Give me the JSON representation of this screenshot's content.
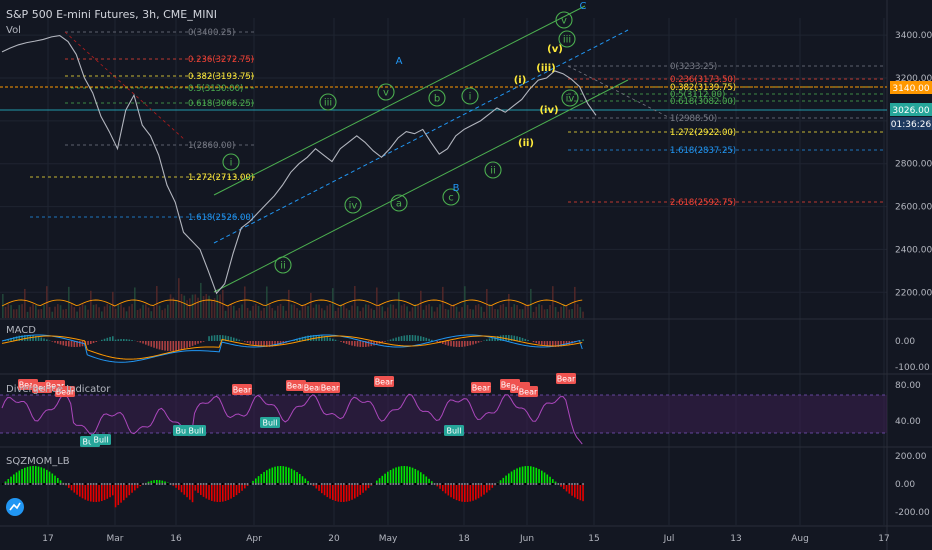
{
  "header": {
    "title": "S&P 500 E-mini Futures, 3h, CME_MINI",
    "vol_label": "Vol"
  },
  "panes": {
    "macd": "MACD",
    "divergence": "Divergence Indicator",
    "squeeze": "SQZMOM_LB"
  },
  "colors": {
    "background": "#131722",
    "grid": "#1f2431",
    "price_line": "#b2b5be",
    "channel_green": "#4caf50",
    "channel_blue": "#2196f3",
    "wave_green": "#4caf50",
    "wave_yellow": "#ffeb3b",
    "wave_blue": "#2196f3",
    "rsi_purple": "#ab47bc",
    "bear_red": "#ef5350",
    "bull_green": "#26a69a",
    "mom_green": "#00e600",
    "mom_red": "#e60000",
    "vol_orange": "#ff9800"
  },
  "chart_data": [
    {
      "type": "line",
      "pane": "price",
      "title": "S&P 500 E-mini Futures, 3h, CME_MINI",
      "x_ticks": [
        "17",
        "Mar",
        "16",
        "Apr",
        "20",
        "May",
        "18",
        "Jun",
        "15",
        "Jul",
        "13",
        "Aug",
        "17"
      ],
      "y_ticks": [
        2200,
        2400,
        2600,
        2800,
        3000,
        3200,
        3400
      ],
      "ylim": [
        2080,
        3480
      ],
      "series": [
        {
          "x": [
            0,
            3,
            6,
            9,
            12,
            15,
            18,
            21,
            24,
            27,
            30,
            33,
            36,
            39,
            42,
            45,
            48,
            51,
            54,
            57,
            60,
            63,
            66,
            69,
            72,
            75,
            78,
            81,
            84,
            87,
            90,
            93,
            96,
            99,
            102,
            105,
            108,
            111,
            114,
            117,
            120,
            123,
            126,
            129,
            132,
            135,
            138,
            141,
            144,
            147,
            150,
            153,
            156,
            159,
            162,
            165,
            168,
            171,
            174,
            177,
            180,
            183,
            186,
            189,
            192,
            195,
            198,
            201,
            204,
            207,
            210,
            213,
            216
          ],
          "y": [
            3322,
            3340,
            3355,
            3365,
            3372,
            3380,
            3392,
            3398,
            3370,
            3310,
            3200,
            3130,
            3020,
            2950,
            2870,
            3050,
            3120,
            2980,
            2930,
            2840,
            2700,
            2620,
            2480,
            2440,
            2400,
            2300,
            2195,
            2240,
            2380,
            2500,
            2530,
            2570,
            2610,
            2650,
            2700,
            2760,
            2800,
            2830,
            2870,
            2840,
            2810,
            2870,
            2900,
            2930,
            2900,
            2860,
            2830,
            2870,
            2920,
            2950,
            2940,
            2960,
            2900,
            2845,
            2870,
            2930,
            2960,
            2980,
            3000,
            3030,
            3060,
            3040,
            3070,
            3100,
            3150,
            3190,
            3200,
            3233,
            3220,
            3195,
            3160,
            3080,
            3026
          ]
        }
      ],
      "last_price": 3026.0,
      "last_price_tag": "3026.00",
      "countdown_tag": "01:36:26",
      "price_tag_3140": "3140.00",
      "fib_left": [
        {
          "label": "0(3400.25)",
          "color": "#787b86"
        },
        {
          "label": "0.236(3272.75)",
          "color": "#f44336"
        },
        {
          "label": "0.382(3193.75)",
          "color": "#ffeb3b"
        },
        {
          "label": "0.5(3130.00)",
          "color": "#4caf50"
        },
        {
          "label": "0.618(3066.25)",
          "color": "#4caf50"
        },
        {
          "label": "1(2860.00)",
          "color": "#787b86"
        },
        {
          "label": "1.272(2713.00)",
          "color": "#ffeb3b"
        },
        {
          "label": "1.618(2526.00)",
          "color": "#2196f3"
        }
      ],
      "fib_right": [
        {
          "label": "0(3233.25)",
          "color": "#787b86"
        },
        {
          "label": "0.236(3173.50)",
          "color": "#f44336"
        },
        {
          "label": "0.382(3139.75)",
          "color": "#ffeb3b"
        },
        {
          "label": "0.5(3112.00)",
          "color": "#4caf50"
        },
        {
          "label": "0.618(3082.00)",
          "color": "#4caf50"
        },
        {
          "label": "1(2988.50)",
          "color": "#787b86"
        },
        {
          "label": "1.272(2922.00)",
          "color": "#ffeb3b"
        },
        {
          "label": "1.618(2837.25)",
          "color": "#2196f3"
        },
        {
          "label": "2.618(2592.75)",
          "color": "#f44336"
        }
      ],
      "waves": [
        {
          "text": "i",
          "style": "green-circle"
        },
        {
          "text": "ii",
          "style": "green-circle"
        },
        {
          "text": "iii",
          "style": "green-circle"
        },
        {
          "text": "iv",
          "style": "green-circle"
        },
        {
          "text": "v",
          "style": "green-circle"
        },
        {
          "text": "a",
          "style": "green-circle"
        },
        {
          "text": "b",
          "style": "green-circle"
        },
        {
          "text": "c",
          "style": "green-circle"
        },
        {
          "text": "i",
          "style": "green-circle"
        },
        {
          "text": "ii",
          "style": "green-circle"
        },
        {
          "text": "iii",
          "style": "green-circle"
        },
        {
          "text": "iv",
          "style": "green-circle"
        },
        {
          "text": "v",
          "style": "green-circle"
        },
        {
          "text": "(i)",
          "style": "yellow"
        },
        {
          "text": "(ii)",
          "style": "yellow"
        },
        {
          "text": "(iii)",
          "style": "yellow"
        },
        {
          "text": "(iv)",
          "style": "yellow"
        },
        {
          "text": "(v)",
          "style": "yellow"
        },
        {
          "text": "A",
          "style": "blue"
        },
        {
          "text": "B",
          "style": "blue"
        },
        {
          "text": "C",
          "style": "blue"
        }
      ]
    },
    {
      "type": "line",
      "pane": "macd",
      "y_ticks": [
        "0.00",
        "-100.00"
      ]
    },
    {
      "type": "line",
      "pane": "divergence",
      "y_ticks": [
        "80.00",
        "40.00"
      ],
      "tags": [
        {
          "text": "Bear",
          "kind": "bear"
        },
        {
          "text": "Bear",
          "kind": "bear"
        },
        {
          "text": "Bear",
          "kind": "bear"
        },
        {
          "text": "Bear",
          "kind": "bear"
        },
        {
          "text": "Bear",
          "kind": "bear"
        },
        {
          "text": "Bear",
          "kind": "bear"
        },
        {
          "text": "Bear",
          "kind": "bear"
        },
        {
          "text": "Bear",
          "kind": "bear"
        },
        {
          "text": "Bear",
          "kind": "bear"
        },
        {
          "text": "Bear",
          "kind": "bear"
        },
        {
          "text": "Bear",
          "kind": "bear"
        },
        {
          "text": "Bear",
          "kind": "bear"
        },
        {
          "text": "Bear",
          "kind": "bear"
        },
        {
          "text": "Bear",
          "kind": "bear"
        },
        {
          "text": "Bull",
          "kind": "bull"
        },
        {
          "text": "Bull",
          "kind": "bull"
        },
        {
          "text": "Bull",
          "kind": "bull"
        },
        {
          "text": "Bull",
          "kind": "bull"
        },
        {
          "text": "Bull",
          "kind": "bull"
        },
        {
          "text": "Bull",
          "kind": "bull"
        }
      ]
    },
    {
      "type": "bar",
      "pane": "squeeze",
      "y_ticks": [
        "200.00",
        "0.00",
        "-200.00"
      ]
    }
  ]
}
